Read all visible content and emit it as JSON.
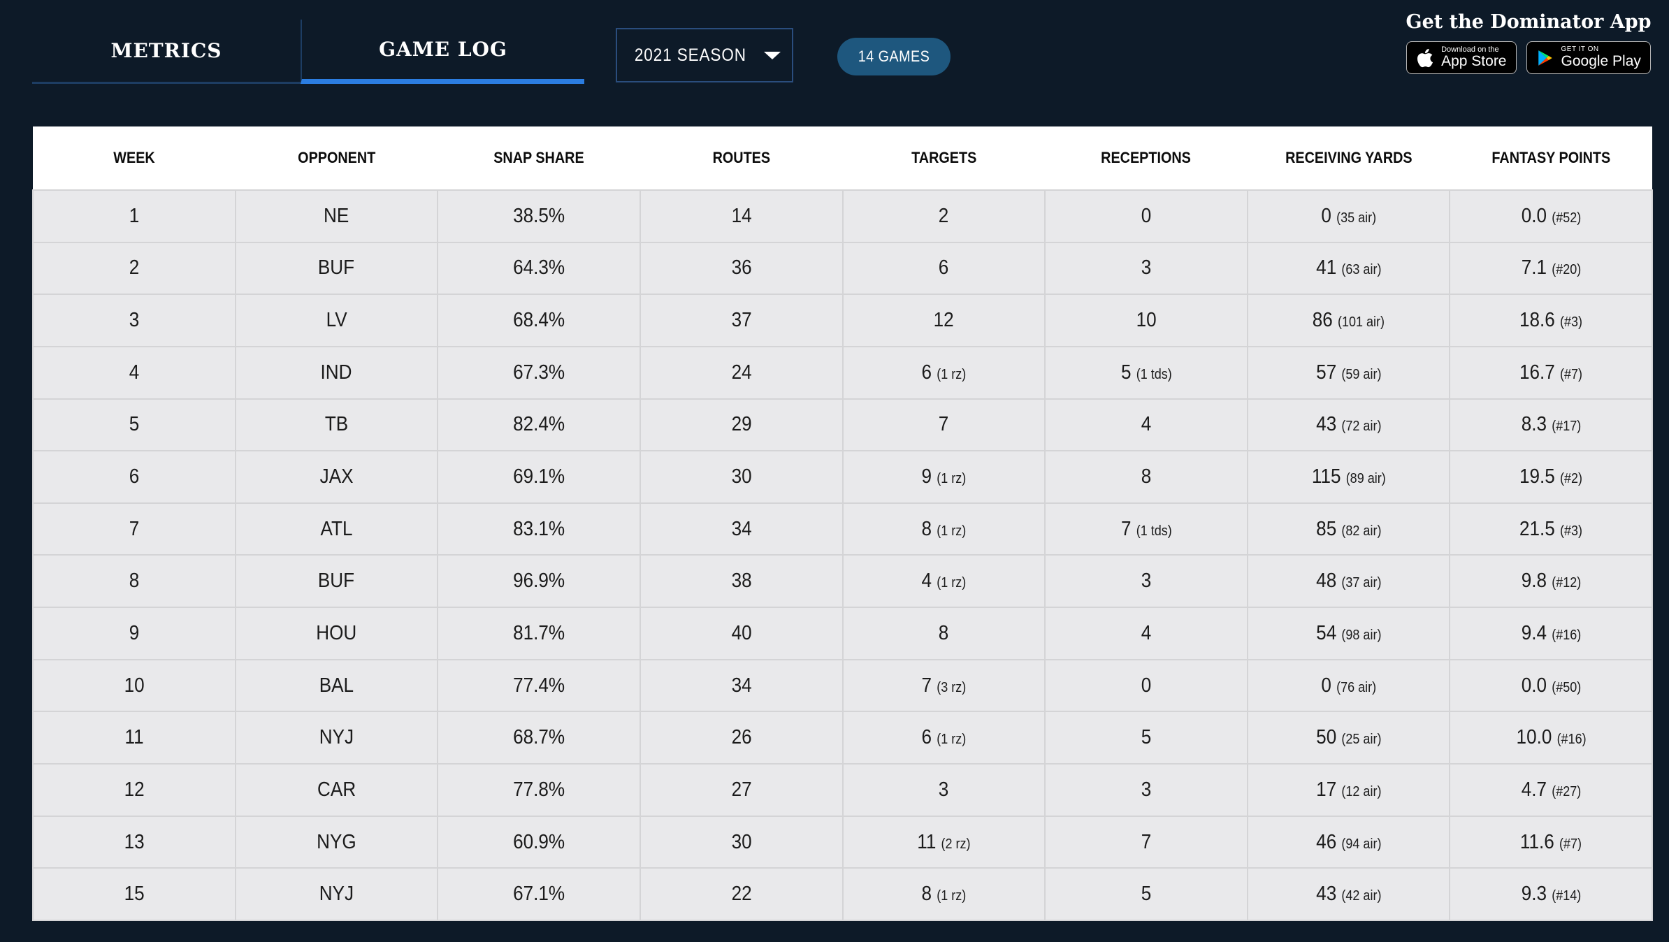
{
  "tabs": [
    {
      "label": "METRICS",
      "active": false
    },
    {
      "label": "GAME LOG",
      "active": true
    }
  ],
  "season": {
    "value": "2021 SEASON"
  },
  "games_badge": "14 GAMES",
  "promo": {
    "title": "Get the Dominator App",
    "app_store": {
      "line1": "Download on the",
      "line2": "App Store"
    },
    "google_play": {
      "line1": "GET IT ON",
      "line2": "Google Play"
    }
  },
  "icons": [
    "chevron-down-icon",
    "apple-icon",
    "google-play-icon"
  ],
  "colors": {
    "page_bg": "#0d1a28",
    "active_tab_underline": "#2b7de1",
    "inactive_tab_underline": "#1d3d63",
    "dropdown_border": "#2a4d7d",
    "badge_bg": "#1e577e",
    "header_bg": "#ffffff",
    "row_bg": "#e9e9eb",
    "grid_line": "#d4d4d6"
  },
  "table": {
    "columns": [
      "WEEK",
      "OPPONENT",
      "SNAP SHARE",
      "ROUTES",
      "TARGETS",
      "RECEPTIONS",
      "RECEIVING YARDS",
      "FANTASY POINTS"
    ],
    "column_keys": [
      "week",
      "opponent",
      "snap-share",
      "routes",
      "targets",
      "receptions",
      "receiving-yards",
      "fantasy-points"
    ],
    "rows": [
      [
        {
          "v": "1"
        },
        {
          "v": "NE"
        },
        {
          "v": "38.5%"
        },
        {
          "v": "14"
        },
        {
          "v": "2"
        },
        {
          "v": "0"
        },
        {
          "v": "0",
          "n": "(35 air)"
        },
        {
          "v": "0.0",
          "n": "(#52)"
        }
      ],
      [
        {
          "v": "2"
        },
        {
          "v": "BUF"
        },
        {
          "v": "64.3%"
        },
        {
          "v": "36"
        },
        {
          "v": "6"
        },
        {
          "v": "3"
        },
        {
          "v": "41",
          "n": "(63 air)"
        },
        {
          "v": "7.1",
          "n": "(#20)"
        }
      ],
      [
        {
          "v": "3"
        },
        {
          "v": "LV"
        },
        {
          "v": "68.4%"
        },
        {
          "v": "37"
        },
        {
          "v": "12"
        },
        {
          "v": "10"
        },
        {
          "v": "86",
          "n": "(101 air)"
        },
        {
          "v": "18.6",
          "n": "(#3)"
        }
      ],
      [
        {
          "v": "4"
        },
        {
          "v": "IND"
        },
        {
          "v": "67.3%"
        },
        {
          "v": "24"
        },
        {
          "v": "6",
          "n": "(1 rz)"
        },
        {
          "v": "5",
          "n": "(1 tds)"
        },
        {
          "v": "57",
          "n": "(59 air)"
        },
        {
          "v": "16.7",
          "n": "(#7)"
        }
      ],
      [
        {
          "v": "5"
        },
        {
          "v": "TB"
        },
        {
          "v": "82.4%"
        },
        {
          "v": "29"
        },
        {
          "v": "7"
        },
        {
          "v": "4"
        },
        {
          "v": "43",
          "n": "(72 air)"
        },
        {
          "v": "8.3",
          "n": "(#17)"
        }
      ],
      [
        {
          "v": "6"
        },
        {
          "v": "JAX"
        },
        {
          "v": "69.1%"
        },
        {
          "v": "30"
        },
        {
          "v": "9",
          "n": "(1 rz)"
        },
        {
          "v": "8"
        },
        {
          "v": "115",
          "n": "(89 air)"
        },
        {
          "v": "19.5",
          "n": "(#2)"
        }
      ],
      [
        {
          "v": "7"
        },
        {
          "v": "ATL"
        },
        {
          "v": "83.1%"
        },
        {
          "v": "34"
        },
        {
          "v": "8",
          "n": "(1 rz)"
        },
        {
          "v": "7",
          "n": "(1 tds)"
        },
        {
          "v": "85",
          "n": "(82 air)"
        },
        {
          "v": "21.5",
          "n": "(#3)"
        }
      ],
      [
        {
          "v": "8"
        },
        {
          "v": "BUF"
        },
        {
          "v": "96.9%"
        },
        {
          "v": "38"
        },
        {
          "v": "4",
          "n": "(1 rz)"
        },
        {
          "v": "3"
        },
        {
          "v": "48",
          "n": "(37 air)"
        },
        {
          "v": "9.8",
          "n": "(#12)"
        }
      ],
      [
        {
          "v": "9"
        },
        {
          "v": "HOU"
        },
        {
          "v": "81.7%"
        },
        {
          "v": "40"
        },
        {
          "v": "8"
        },
        {
          "v": "4"
        },
        {
          "v": "54",
          "n": "(98 air)"
        },
        {
          "v": "9.4",
          "n": "(#16)"
        }
      ],
      [
        {
          "v": "10"
        },
        {
          "v": "BAL"
        },
        {
          "v": "77.4%"
        },
        {
          "v": "34"
        },
        {
          "v": "7",
          "n": "(3 rz)"
        },
        {
          "v": "0"
        },
        {
          "v": "0",
          "n": "(76 air)"
        },
        {
          "v": "0.0",
          "n": "(#50)"
        }
      ],
      [
        {
          "v": "11"
        },
        {
          "v": "NYJ"
        },
        {
          "v": "68.7%"
        },
        {
          "v": "26"
        },
        {
          "v": "6",
          "n": "(1 rz)"
        },
        {
          "v": "5"
        },
        {
          "v": "50",
          "n": "(25 air)"
        },
        {
          "v": "10.0",
          "n": "(#16)"
        }
      ],
      [
        {
          "v": "12"
        },
        {
          "v": "CAR"
        },
        {
          "v": "77.8%"
        },
        {
          "v": "27"
        },
        {
          "v": "3"
        },
        {
          "v": "3"
        },
        {
          "v": "17",
          "n": "(12 air)"
        },
        {
          "v": "4.7",
          "n": "(#27)"
        }
      ],
      [
        {
          "v": "13"
        },
        {
          "v": "NYG"
        },
        {
          "v": "60.9%"
        },
        {
          "v": "30"
        },
        {
          "v": "11",
          "n": "(2 rz)"
        },
        {
          "v": "7"
        },
        {
          "v": "46",
          "n": "(94 air)"
        },
        {
          "v": "11.6",
          "n": "(#7)"
        }
      ],
      [
        {
          "v": "15"
        },
        {
          "v": "NYJ"
        },
        {
          "v": "67.1%"
        },
        {
          "v": "22"
        },
        {
          "v": "8",
          "n": "(1 rz)"
        },
        {
          "v": "5"
        },
        {
          "v": "43",
          "n": "(42 air)"
        },
        {
          "v": "9.3",
          "n": "(#14)"
        }
      ]
    ]
  }
}
